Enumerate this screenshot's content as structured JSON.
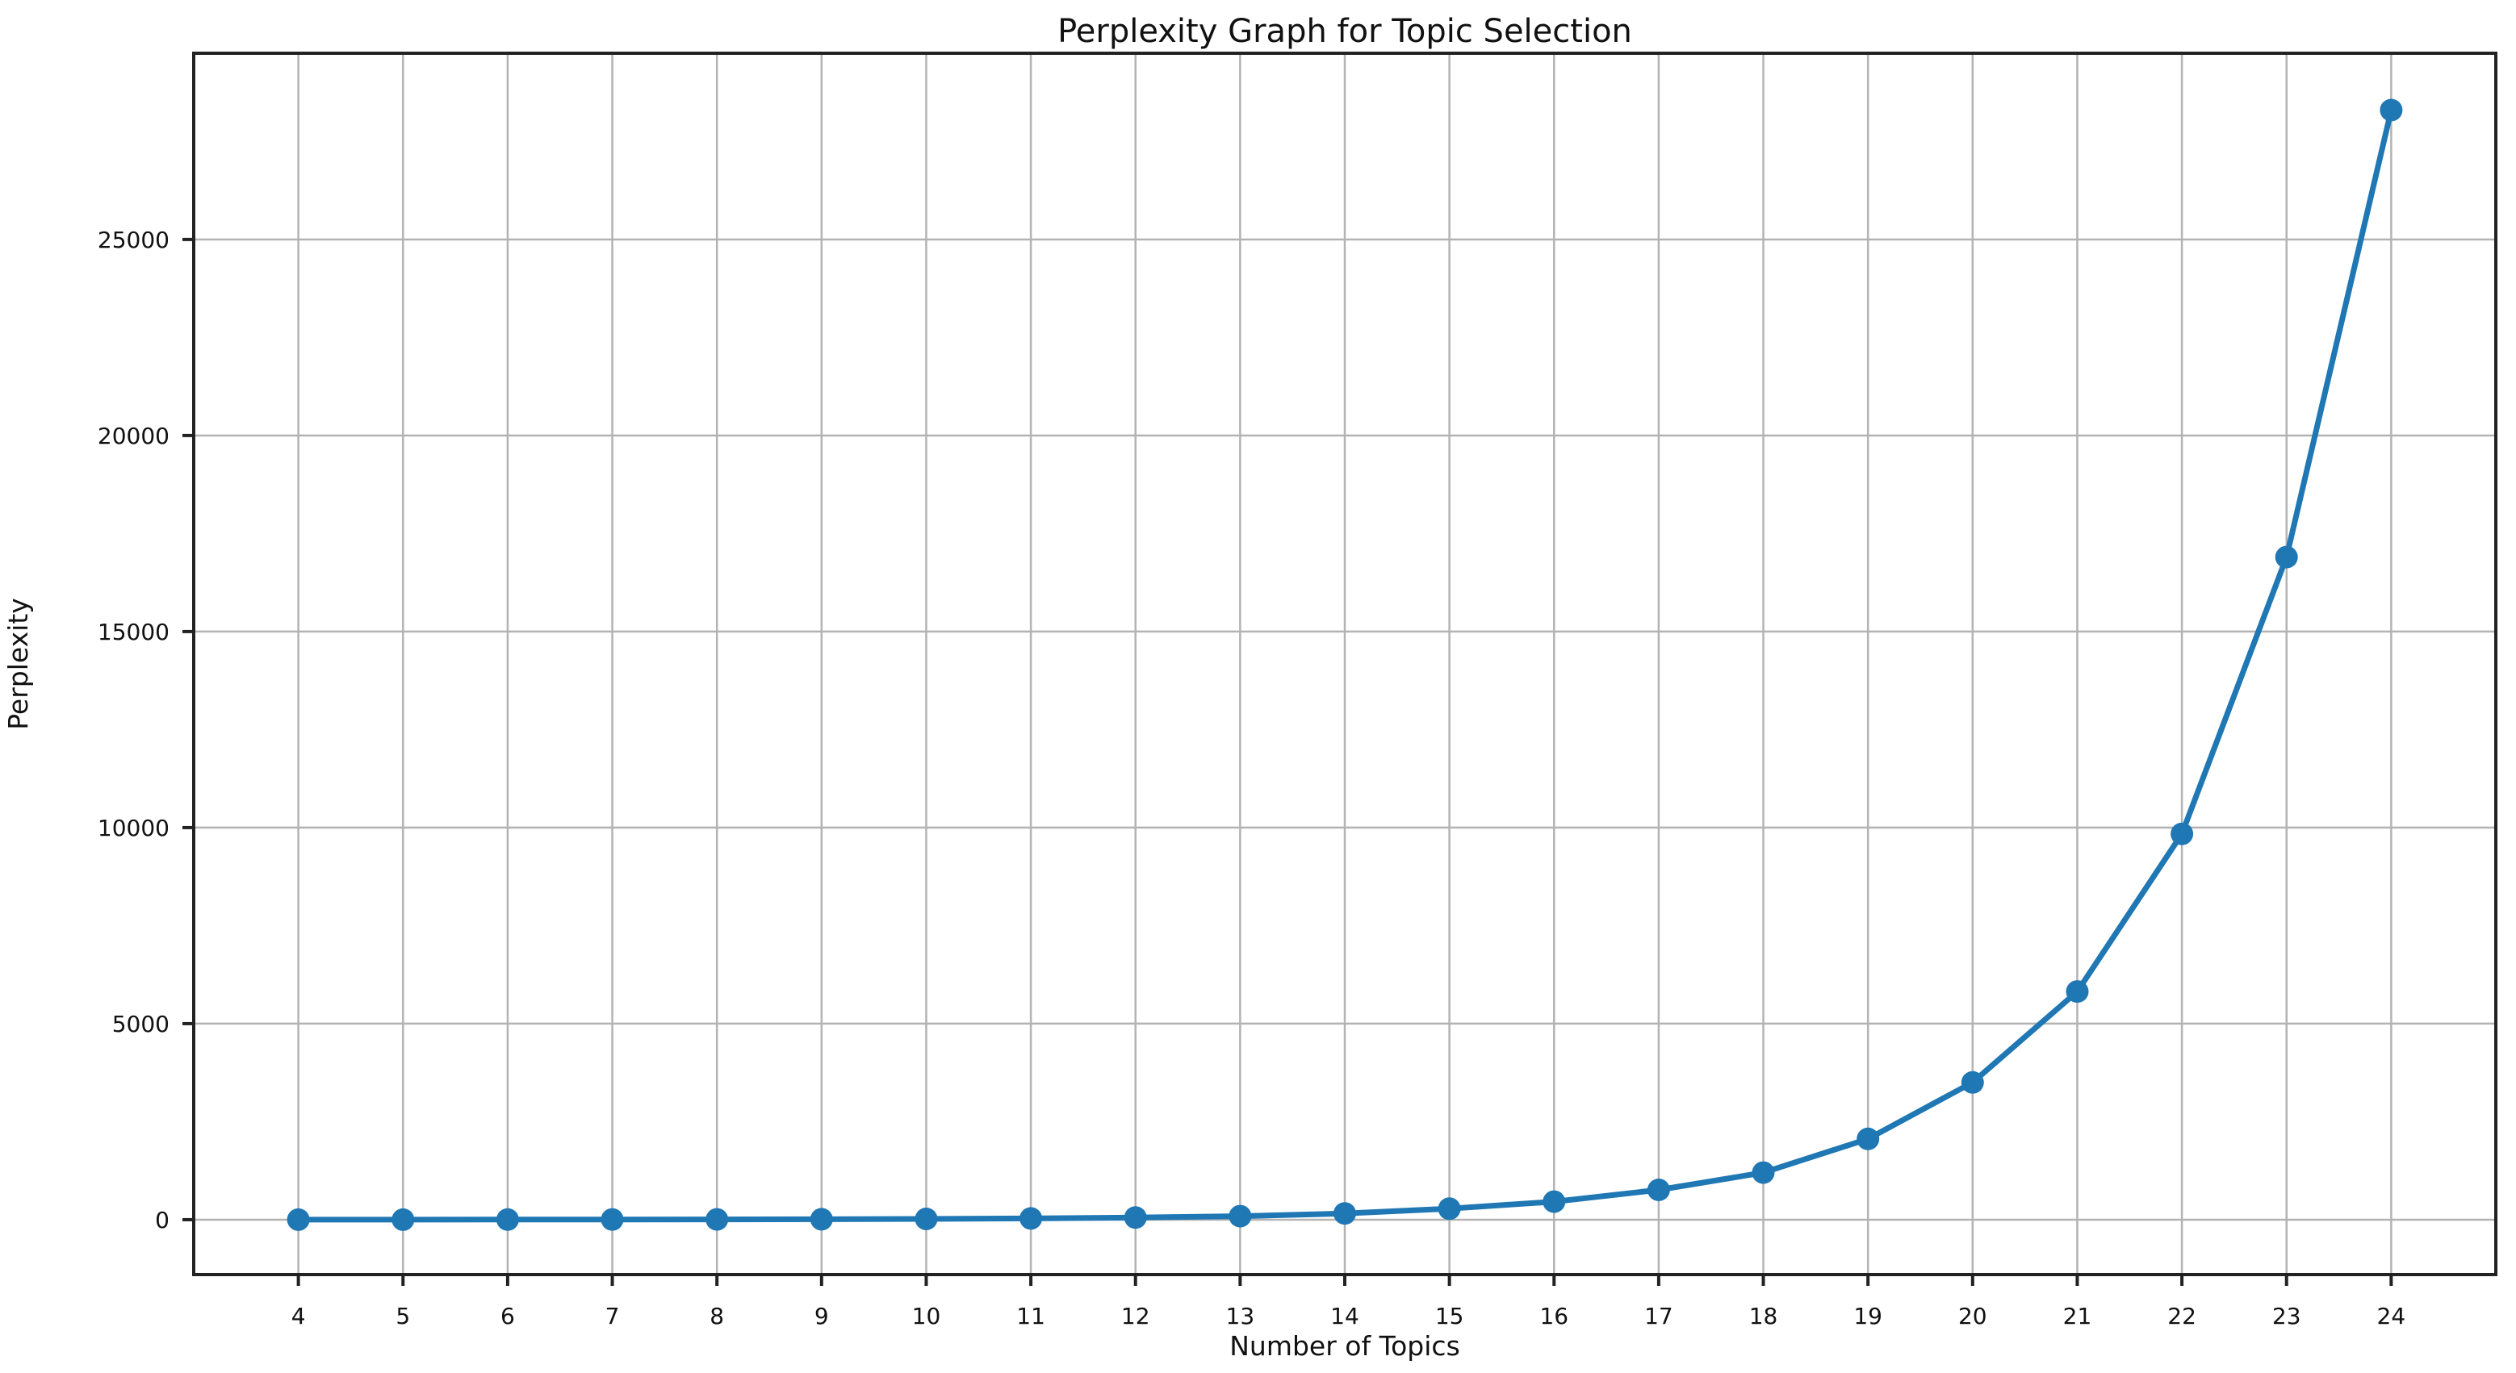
{
  "figure": {
    "background": "#ffffff"
  },
  "chart_data": {
    "type": "line",
    "title": "Perplexity Graph for Topic Selection",
    "xlabel": "Number of Topics",
    "ylabel": "Perplexity",
    "x": [
      4,
      5,
      6,
      7,
      8,
      9,
      10,
      11,
      12,
      13,
      14,
      15,
      16,
      17,
      18,
      19,
      20,
      21,
      22,
      23,
      24
    ],
    "y": [
      1,
      2,
      3,
      5,
      8,
      12,
      20,
      33,
      55,
      90,
      160,
      280,
      460,
      760,
      1200,
      2060,
      3500,
      5820,
      9840,
      16900,
      28300
    ],
    "series_name": "Perplexity",
    "xlim": [
      3,
      25
    ],
    "ylim": [
      -1400,
      29750
    ],
    "x_ticks": [
      4,
      5,
      6,
      7,
      8,
      9,
      10,
      11,
      12,
      13,
      14,
      15,
      16,
      17,
      18,
      19,
      20,
      21,
      22,
      23,
      24
    ],
    "y_ticks": [
      0,
      5000,
      10000,
      15000,
      20000,
      25000
    ],
    "grid": true,
    "legend": "none",
    "marker": "circle",
    "line_color": "#1f77b4",
    "marker_color": "#1f77b4",
    "grid_color": "#b3b3b3",
    "spine_color": "#222222",
    "tick_color": "#222222",
    "text_color": "#111111"
  }
}
